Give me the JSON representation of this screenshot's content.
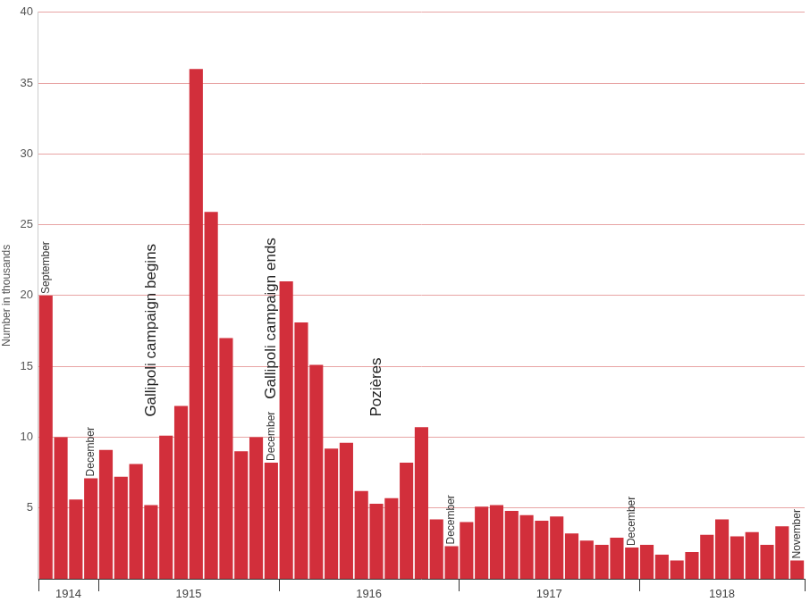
{
  "chart_data": {
    "type": "bar",
    "y_label": "Number in thousands",
    "categories": [
      null,
      null,
      null,
      null,
      null,
      null,
      null,
      null,
      null,
      null,
      null,
      null,
      null,
      null,
      null,
      null,
      null,
      null,
      null,
      null,
      null,
      null,
      null,
      null,
      null,
      null,
      null,
      null,
      null,
      null,
      null,
      null,
      null,
      null,
      null,
      null,
      null,
      null,
      null,
      null,
      null,
      null,
      null,
      null,
      null,
      null,
      null,
      null,
      null,
      null,
      null
    ],
    "values": [
      20,
      10,
      5.6,
      7.1,
      9.1,
      7.2,
      8.1,
      5.2,
      10.1,
      12.2,
      36,
      25.9,
      17,
      9,
      10,
      8.2,
      21,
      18.1,
      15.1,
      9.2,
      9.6,
      6.2,
      5.3,
      5.7,
      8.2,
      10.7,
      4.2,
      2.3,
      4,
      5.1,
      5.2,
      4.8,
      4.5,
      4.1,
      4.4,
      3.2,
      2.7,
      2.4,
      2.9,
      2.2,
      2.4,
      1.7,
      1.3,
      1.9,
      3.1,
      4.2,
      3,
      3.3,
      2.4,
      3.7,
      1.3
    ],
    "groups": [
      {
        "label": "1914",
        "size": 4
      },
      {
        "label": "1915",
        "size": 12
      },
      {
        "label": "1916",
        "size": 12
      },
      {
        "label": "1917",
        "size": 12
      },
      {
        "label": "1918",
        "size": 11
      }
    ],
    "month_marks": [
      {
        "text": "September",
        "index": 0
      },
      {
        "text": "December",
        "index": 3
      },
      {
        "text": "December",
        "index": 15
      },
      {
        "text": "December",
        "index": 27
      },
      {
        "text": "December",
        "index": 39
      },
      {
        "text": "November",
        "index": 50
      }
    ],
    "events": [
      {
        "text": "Gallipoli campaign begins",
        "index": 7
      },
      {
        "text": "Gallipoli campaign ends",
        "index": 15
      },
      {
        "text": "Pozières",
        "index": 22
      }
    ],
    "color": "#d22f3b",
    "ylim": [
      0,
      40
    ],
    "yticks": [
      5,
      10,
      15,
      20,
      25,
      30,
      35,
      40
    ],
    "grid": true
  }
}
